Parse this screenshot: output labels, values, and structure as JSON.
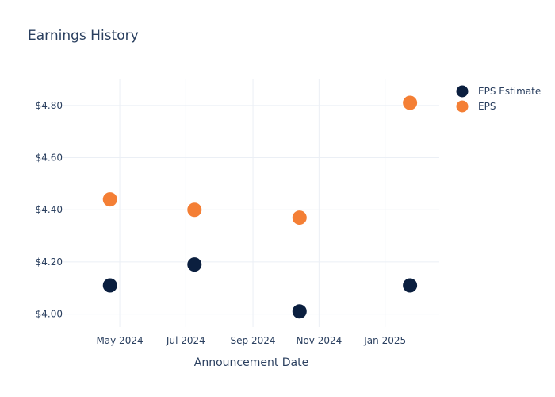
{
  "chart_data": {
    "type": "scatter",
    "title": "Earnings History",
    "xlabel": "Announcement Date",
    "ylabel": "",
    "x_ticks": [
      "May 2024",
      "Jul 2024",
      "Sep 2024",
      "Nov 2024",
      "Jan 2025"
    ],
    "y_ticks": [
      "$4.00",
      "$4.20",
      "$4.40",
      "$4.60",
      "$4.80"
    ],
    "x_range": [
      "2024-03-10",
      "2025-02-20"
    ],
    "ylim": [
      3.95,
      4.9
    ],
    "grid": true,
    "legend_position": "top-right",
    "series": [
      {
        "name": "EPS Estimate",
        "color": "#0b1f3f",
        "points": [
          {
            "x": "2024-04-22",
            "y": 4.11
          },
          {
            "x": "2024-07-09",
            "y": 4.19
          },
          {
            "x": "2024-10-14",
            "y": 4.01
          },
          {
            "x": "2025-01-24",
            "y": 4.11
          }
        ]
      },
      {
        "name": "EPS",
        "color": "#f47f35",
        "points": [
          {
            "x": "2024-04-22",
            "y": 4.44
          },
          {
            "x": "2024-07-09",
            "y": 4.4
          },
          {
            "x": "2024-10-14",
            "y": 4.37
          },
          {
            "x": "2025-01-24",
            "y": 4.81
          }
        ]
      }
    ]
  }
}
